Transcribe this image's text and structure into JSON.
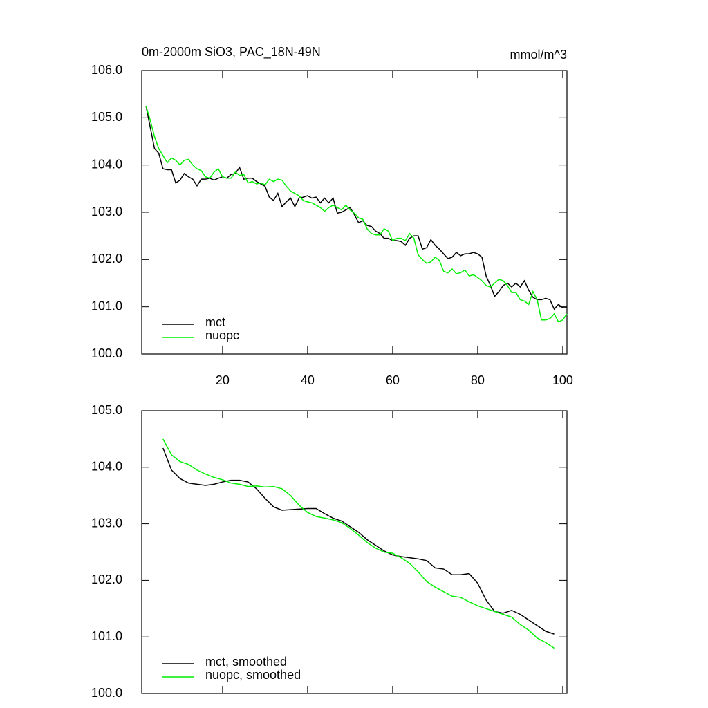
{
  "chart_data": [
    {
      "type": "line",
      "title": "0m-2000m SiO3, PAC_18N-49N",
      "units_label": "mmol/m^3",
      "x": [
        2,
        3,
        4,
        5,
        6,
        7,
        8,
        9,
        10,
        11,
        12,
        13,
        14,
        15,
        16,
        17,
        18,
        19,
        20,
        21,
        22,
        23,
        24,
        25,
        26,
        27,
        28,
        29,
        30,
        31,
        32,
        33,
        34,
        35,
        36,
        37,
        38,
        39,
        40,
        41,
        42,
        43,
        44,
        45,
        46,
        47,
        48,
        49,
        50,
        51,
        52,
        53,
        54,
        55,
        56,
        57,
        58,
        59,
        60,
        61,
        62,
        63,
        64,
        65,
        66,
        67,
        68,
        69,
        70,
        71,
        72,
        73,
        74,
        75,
        76,
        77,
        78,
        79,
        80,
        81,
        82,
        83,
        84,
        85,
        86,
        87,
        88,
        89,
        90,
        91,
        92,
        93,
        94,
        95,
        96,
        97,
        98,
        99,
        100,
        101
      ],
      "series": [
        {
          "name": "mct",
          "color": "#000000",
          "values": [
            105.25,
            104.8,
            104.35,
            104.25,
            103.92,
            103.9,
            103.9,
            103.62,
            103.68,
            103.82,
            103.75,
            103.7,
            103.56,
            103.7,
            103.7,
            103.72,
            103.68,
            103.72,
            103.75,
            103.72,
            103.8,
            103.82,
            103.95,
            103.7,
            103.72,
            103.72,
            103.65,
            103.6,
            103.55,
            103.32,
            103.25,
            103.4,
            103.12,
            103.22,
            103.3,
            103.12,
            103.3,
            103.32,
            103.35,
            103.3,
            103.32,
            103.2,
            103.3,
            103.2,
            103.3,
            102.98,
            103.0,
            103.05,
            103.1,
            102.95,
            102.78,
            102.82,
            102.72,
            102.7,
            102.6,
            102.55,
            102.45,
            102.45,
            102.4,
            102.4,
            102.38,
            102.3,
            102.45,
            102.5,
            102.5,
            102.22,
            102.25,
            102.42,
            102.3,
            102.22,
            102.12,
            102.02,
            102.05,
            102.15,
            102.08,
            102.12,
            102.12,
            102.15,
            102.12,
            102.05,
            101.65,
            101.45,
            101.22,
            101.32,
            101.45,
            101.5,
            101.42,
            101.5,
            101.42,
            101.55,
            101.35,
            101.2,
            101.15,
            101.15,
            101.18,
            101.15,
            100.95,
            101.05,
            100.98,
            100.98
          ]
        },
        {
          "name": "nuopc",
          "color": "#00ee00",
          "values": [
            105.25,
            104.95,
            104.6,
            104.35,
            104.2,
            104.05,
            104.15,
            104.1,
            104.0,
            104.1,
            104.12,
            104.0,
            103.92,
            103.88,
            103.75,
            103.72,
            103.85,
            103.92,
            103.75,
            103.72,
            103.72,
            103.85,
            103.78,
            103.8,
            103.62,
            103.65,
            103.6,
            103.62,
            103.58,
            103.7,
            103.65,
            103.7,
            103.68,
            103.55,
            103.45,
            103.4,
            103.35,
            103.25,
            103.22,
            103.2,
            103.15,
            103.1,
            103.02,
            103.1,
            103.15,
            103.1,
            103.05,
            103.15,
            103.05,
            102.98,
            102.88,
            102.85,
            102.65,
            102.55,
            102.52,
            102.52,
            102.65,
            102.6,
            102.4,
            102.45,
            102.45,
            102.4,
            102.55,
            102.45,
            102.1,
            102.0,
            101.92,
            101.95,
            102.05,
            101.98,
            101.75,
            101.72,
            101.8,
            101.7,
            101.72,
            101.78,
            101.65,
            101.68,
            101.62,
            101.55,
            101.45,
            101.42,
            101.5,
            101.58,
            101.55,
            101.45,
            101.3,
            101.3,
            101.15,
            101.12,
            101.05,
            101.32,
            101.15,
            100.72,
            100.72,
            100.75,
            100.85,
            100.68,
            100.72,
            100.85
          ]
        }
      ],
      "xlim": [
        1,
        101
      ],
      "xticks": [
        20,
        40,
        60,
        80,
        100
      ],
      "xtick_labels": true,
      "ylim": [
        100,
        106
      ],
      "yticks": [
        {
          "value": 100,
          "label": "100.0"
        },
        {
          "value": 101,
          "label": "101.0"
        },
        {
          "value": 102,
          "label": "102.0"
        },
        {
          "value": 103,
          "label": "103.0"
        },
        {
          "value": 104,
          "label": "104.0"
        },
        {
          "value": 105,
          "label": "105.0"
        },
        {
          "value": 106,
          "label": "106.0"
        }
      ],
      "legend": "lower left"
    },
    {
      "type": "line",
      "x": [
        6,
        8,
        10,
        12,
        14,
        16,
        18,
        20,
        22,
        24,
        26,
        28,
        30,
        32,
        34,
        36,
        38,
        40,
        42,
        44,
        46,
        48,
        50,
        52,
        54,
        56,
        58,
        60,
        62,
        64,
        66,
        68,
        70,
        72,
        74,
        76,
        78,
        80,
        82,
        84,
        86,
        88,
        90,
        92,
        94,
        96,
        98
      ],
      "series": [
        {
          "name": "mct, smoothed",
          "color": "#000000",
          "values": [
            104.34,
            103.95,
            103.8,
            103.72,
            103.7,
            103.68,
            103.7,
            103.74,
            103.77,
            103.77,
            103.74,
            103.62,
            103.45,
            103.3,
            103.24,
            103.25,
            103.26,
            103.27,
            103.27,
            103.18,
            103.1,
            103.05,
            102.95,
            102.85,
            102.72,
            102.62,
            102.52,
            102.45,
            102.42,
            102.4,
            102.38,
            102.35,
            102.22,
            102.2,
            102.1,
            102.1,
            102.12,
            101.95,
            101.65,
            101.45,
            101.42,
            101.47,
            101.4,
            101.3,
            101.2,
            101.1,
            101.05
          ]
        },
        {
          "name": "nuopc, smoothed",
          "color": "#00ee00",
          "values": [
            104.5,
            104.22,
            104.1,
            104.05,
            103.95,
            103.88,
            103.82,
            103.78,
            103.72,
            103.7,
            103.66,
            103.67,
            103.65,
            103.66,
            103.62,
            103.5,
            103.33,
            103.2,
            103.13,
            103.1,
            103.07,
            103.02,
            102.92,
            102.8,
            102.67,
            102.57,
            102.5,
            102.48,
            102.4,
            102.3,
            102.15,
            101.98,
            101.88,
            101.8,
            101.72,
            101.7,
            101.62,
            101.55,
            101.5,
            101.45,
            101.4,
            101.35,
            101.22,
            101.12,
            100.98,
            100.9,
            100.8
          ]
        }
      ],
      "xlim": [
        1,
        101
      ],
      "xticks": [
        20,
        40,
        60,
        80,
        100
      ],
      "xtick_labels": false,
      "ylim": [
        100,
        105
      ],
      "yticks": [
        {
          "value": 100,
          "label": "100.0"
        },
        {
          "value": 101,
          "label": "101.0"
        },
        {
          "value": 102,
          "label": "102.0"
        },
        {
          "value": 103,
          "label": "103.0"
        },
        {
          "value": 104,
          "label": "104.0"
        },
        {
          "value": 105,
          "label": "105.0"
        }
      ],
      "legend": "lower left"
    }
  ]
}
